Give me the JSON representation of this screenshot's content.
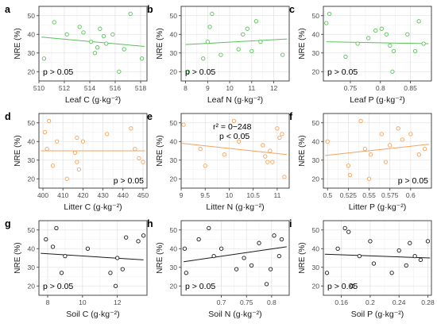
{
  "chart_data": [
    {
      "type": "scatter",
      "label": "a",
      "xlabel": "Leaf C (g·kg⁻²)",
      "ylabel": "NRE (%)",
      "xlim": [
        510,
        518.5
      ],
      "ylim": [
        15,
        55
      ],
      "xticks": [
        510,
        512,
        514,
        516,
        518
      ],
      "yticks": [
        20,
        30,
        40,
        50
      ],
      "color": "#5bc25b",
      "annotation": "p > 0.05",
      "annotation_pos": "bottom-left",
      "trend": [
        [
          510.2,
          38.5
        ],
        [
          518.3,
          33.5
        ]
      ],
      "points": [
        [
          510.4,
          27
        ],
        [
          511.2,
          46.5
        ],
        [
          512.2,
          40
        ],
        [
          513.2,
          44
        ],
        [
          513.5,
          41
        ],
        [
          514.1,
          36
        ],
        [
          514.4,
          30
        ],
        [
          514.6,
          33
        ],
        [
          514.8,
          43
        ],
        [
          515.1,
          39
        ],
        [
          515.3,
          35
        ],
        [
          515.8,
          40
        ],
        [
          516.3,
          20
        ],
        [
          516.7,
          32
        ],
        [
          517.2,
          51
        ],
        [
          518.1,
          27
        ]
      ]
    },
    {
      "type": "scatter",
      "label": "b",
      "xlabel": "Leaf N (g·kg⁻²)",
      "ylabel": "NRE (%)",
      "xlim": [
        7.8,
        12.7
      ],
      "ylim": [
        15,
        55
      ],
      "xticks": [
        8,
        9,
        10,
        11,
        12
      ],
      "yticks": [
        20,
        30,
        40,
        50
      ],
      "color": "#5bc25b",
      "annotation": "p > 0.05",
      "annotation_pos": "bottom-left",
      "trend": [
        [
          8.0,
          34.5
        ],
        [
          12.6,
          37.5
        ]
      ],
      "points": [
        [
          8.1,
          20
        ],
        [
          8.8,
          27
        ],
        [
          9.0,
          36
        ],
        [
          9.1,
          44
        ],
        [
          9.2,
          51
        ],
        [
          9.6,
          29
        ],
        [
          10.4,
          32
        ],
        [
          10.6,
          40
        ],
        [
          10.8,
          43
        ],
        [
          11.0,
          31
        ],
        [
          11.2,
          47
        ],
        [
          11.4,
          36
        ],
        [
          12.4,
          29
        ]
      ]
    },
    {
      "type": "scatter",
      "label": "c",
      "xlabel": "Leaf P (g·kg⁻²)",
      "ylabel": "NRE (%)",
      "xlim": [
        0.705,
        0.885
      ],
      "ylim": [
        15,
        55
      ],
      "xticks": [
        0.75,
        0.8,
        0.85
      ],
      "yticks": [
        20,
        30,
        40,
        50
      ],
      "color": "#5bc25b",
      "annotation": "p > 0.05",
      "annotation_pos": "bottom-left",
      "trend": [
        [
          0.71,
          36
        ],
        [
          0.88,
          35
        ]
      ],
      "points": [
        [
          0.71,
          46
        ],
        [
          0.715,
          51
        ],
        [
          0.742,
          28
        ],
        [
          0.762,
          35
        ],
        [
          0.78,
          38
        ],
        [
          0.792,
          42
        ],
        [
          0.802,
          43
        ],
        [
          0.81,
          40
        ],
        [
          0.816,
          34
        ],
        [
          0.82,
          20
        ],
        [
          0.822,
          31
        ],
        [
          0.845,
          40
        ],
        [
          0.858,
          31
        ],
        [
          0.864,
          47
        ],
        [
          0.872,
          35
        ]
      ]
    },
    {
      "type": "scatter",
      "label": "d",
      "xlabel": "Litter C (g·kg⁻²)",
      "ylabel": "NRE (%)",
      "xlim": [
        398,
        452
      ],
      "ylim": [
        15,
        55
      ],
      "xticks": [
        400,
        410,
        420,
        430,
        440,
        450
      ],
      "yticks": [
        20,
        30,
        40,
        50
      ],
      "color": "#f5a25d",
      "annotation": "p > 0.05",
      "annotation_pos": "bottom-right",
      "trend": [
        [
          399,
          35
        ],
        [
          451,
          35
        ]
      ],
      "points": [
        [
          401,
          45
        ],
        [
          402,
          36
        ],
        [
          403,
          51
        ],
        [
          405,
          27
        ],
        [
          407,
          40
        ],
        [
          412,
          20
        ],
        [
          416,
          34
        ],
        [
          417,
          42
        ],
        [
          417,
          29
        ],
        [
          418,
          25
        ],
        [
          420,
          40
        ],
        [
          432,
          44
        ],
        [
          444,
          47
        ],
        [
          446,
          36
        ],
        [
          448,
          31
        ],
        [
          450,
          29
        ]
      ]
    },
    {
      "type": "scatter",
      "label": "e",
      "xlabel": "Litter N (g·kg⁻²)",
      "ylabel": "NRE (%)",
      "xlim": [
        9.0,
        11.25
      ],
      "ylim": [
        15,
        55
      ],
      "xticks": [
        9.0,
        9.5,
        10.0,
        10.5,
        11.0
      ],
      "yticks": [
        20,
        30,
        40,
        50
      ],
      "color": "#f5a25d",
      "annotation": "r² = 0−248",
      "annotation2": "p < 0.05",
      "annotation_pos": "top-center",
      "trend": [
        [
          9.02,
          39
        ],
        [
          11.2,
          33
        ]
      ],
      "points": [
        [
          9.05,
          49
        ],
        [
          9.4,
          36
        ],
        [
          9.5,
          27
        ],
        [
          9.9,
          33
        ],
        [
          10.1,
          51
        ],
        [
          10.2,
          40
        ],
        [
          10.7,
          38
        ],
        [
          10.75,
          32
        ],
        [
          10.8,
          29
        ],
        [
          10.85,
          35
        ],
        [
          10.9,
          29
        ],
        [
          11.0,
          47
        ],
        [
          11.05,
          42
        ],
        [
          11.1,
          44
        ],
        [
          11.15,
          21
        ]
      ]
    },
    {
      "type": "scatter",
      "label": "f",
      "xlabel": "Litter P (g·kg⁻²)",
      "ylabel": "NRE (%)",
      "xlim": [
        0.495,
        0.625
      ],
      "ylim": [
        15,
        55
      ],
      "xticks": [
        0.5,
        0.525,
        0.55,
        0.575,
        0.6
      ],
      "yticks": [
        20,
        30,
        40,
        50
      ],
      "color": "#f5a25d",
      "annotation": "p > 0.05",
      "annotation_pos": "bottom-right",
      "trend": [
        [
          0.497,
          32.5
        ],
        [
          0.622,
          38.5
        ]
      ],
      "points": [
        [
          0.5,
          40
        ],
        [
          0.525,
          27
        ],
        [
          0.527,
          22
        ],
        [
          0.54,
          51
        ],
        [
          0.545,
          36
        ],
        [
          0.55,
          20
        ],
        [
          0.552,
          33
        ],
        [
          0.565,
          44
        ],
        [
          0.57,
          29
        ],
        [
          0.575,
          38
        ],
        [
          0.585,
          47
        ],
        [
          0.59,
          41
        ],
        [
          0.6,
          44
        ],
        [
          0.61,
          33
        ],
        [
          0.617,
          36
        ]
      ]
    },
    {
      "type": "scatter",
      "label": "g",
      "xlabel": "Soil C (g·kg⁻²)",
      "ylabel": "NRE (%)",
      "xlim": [
        7.5,
        13.7
      ],
      "ylim": [
        15,
        55
      ],
      "xticks": [
        8,
        10,
        12
      ],
      "yticks": [
        20,
        30,
        40,
        50
      ],
      "color": "#1a1a1a",
      "annotation": "p > 0.05",
      "annotation_pos": "bottom-left",
      "trend": [
        [
          7.6,
          37.5
        ],
        [
          13.5,
          34
        ]
      ],
      "points": [
        [
          7.9,
          45
        ],
        [
          8.3,
          41
        ],
        [
          8.5,
          51
        ],
        [
          8.8,
          27
        ],
        [
          9.0,
          36
        ],
        [
          10.3,
          40
        ],
        [
          11.6,
          27
        ],
        [
          11.9,
          20
        ],
        [
          12.0,
          35
        ],
        [
          12.3,
          29
        ],
        [
          12.5,
          46
        ],
        [
          13.2,
          44
        ],
        [
          13.5,
          47
        ]
      ]
    },
    {
      "type": "scatter",
      "label": "h",
      "xlabel": "Soil N (g·kg⁻²)",
      "ylabel": "NRE (%)",
      "xlim": [
        0.62,
        0.835
      ],
      "ylim": [
        15,
        55
      ],
      "xticks": [
        0.7,
        0.75,
        0.8
      ],
      "yticks": [
        20,
        30,
        40,
        50
      ],
      "color": "#1a1a1a",
      "annotation": "p > 0.05",
      "annotation_pos": "bottom-left",
      "trend": [
        [
          0.625,
          33
        ],
        [
          0.83,
          41
        ]
      ],
      "points": [
        [
          0.627,
          40
        ],
        [
          0.63,
          27
        ],
        [
          0.655,
          45
        ],
        [
          0.675,
          51
        ],
        [
          0.685,
          36
        ],
        [
          0.7,
          40
        ],
        [
          0.73,
          29
        ],
        [
          0.745,
          35
        ],
        [
          0.76,
          31
        ],
        [
          0.775,
          43
        ],
        [
          0.79,
          21
        ],
        [
          0.798,
          29
        ],
        [
          0.805,
          47
        ],
        [
          0.815,
          36
        ],
        [
          0.82,
          45
        ]
      ]
    },
    {
      "type": "scatter",
      "label": "i",
      "xlabel": "Soil P (g·kg⁻²)",
      "ylabel": "NRE (%)",
      "xlim": [
        0.135,
        0.285
      ],
      "ylim": [
        15,
        55
      ],
      "xticks": [
        0.16,
        0.2,
        0.24,
        0.28
      ],
      "yticks": [
        20,
        30,
        40,
        50
      ],
      "color": "#1a1a1a",
      "annotation": "p > 0.05",
      "annotation_pos": "bottom-left",
      "trend": [
        [
          0.137,
          37
        ],
        [
          0.283,
          35
        ]
      ],
      "points": [
        [
          0.14,
          27
        ],
        [
          0.155,
          40
        ],
        [
          0.165,
          51
        ],
        [
          0.17,
          49
        ],
        [
          0.175,
          20
        ],
        [
          0.185,
          36
        ],
        [
          0.2,
          44
        ],
        [
          0.205,
          32
        ],
        [
          0.23,
          27
        ],
        [
          0.24,
          39
        ],
        [
          0.25,
          31
        ],
        [
          0.255,
          43
        ],
        [
          0.262,
          36
        ],
        [
          0.27,
          34
        ],
        [
          0.28,
          44
        ]
      ]
    }
  ]
}
